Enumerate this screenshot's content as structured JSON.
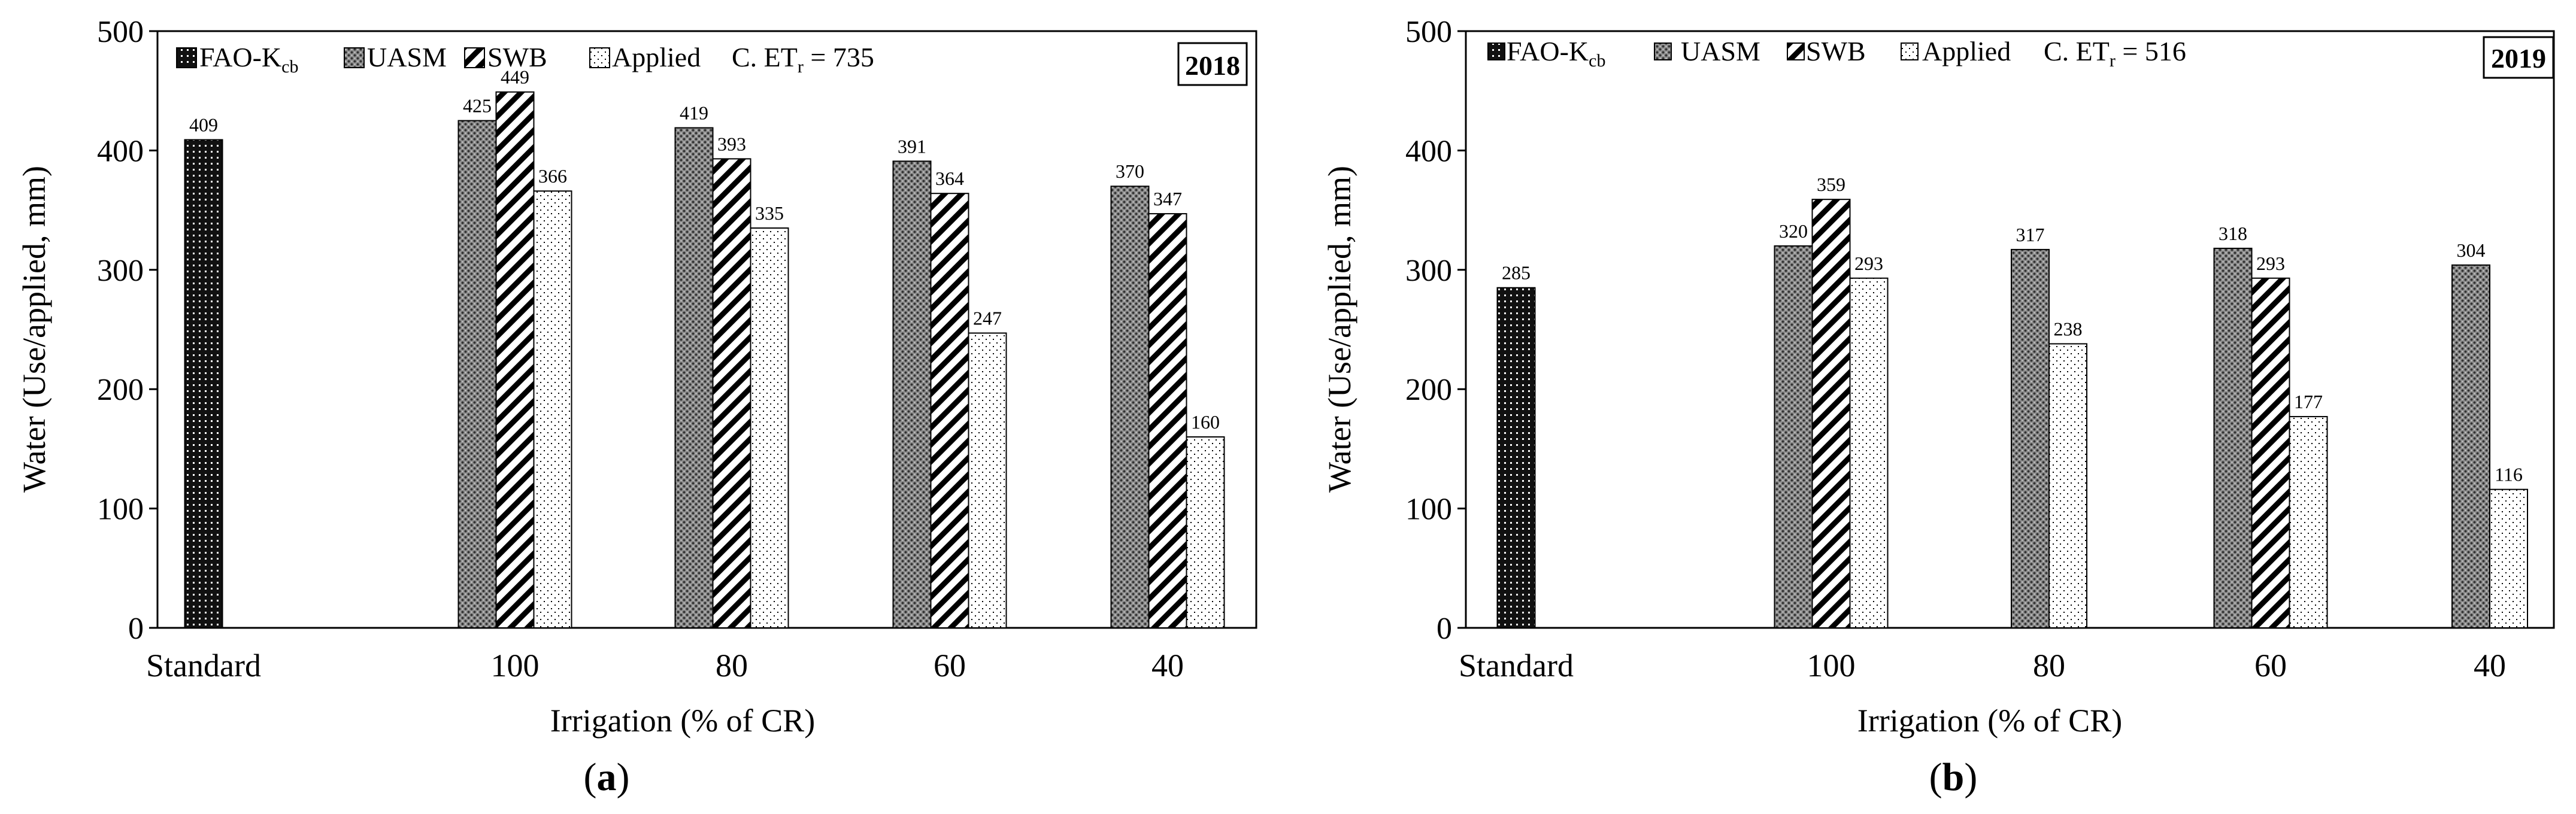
{
  "figure": {
    "legend_labels": [
      "FAO-K",
      "UASM",
      "SWB",
      "Applied"
    ],
    "legend_subscript": "cb",
    "axis_tick_values": [
      0,
      100,
      200,
      300,
      400,
      500
    ]
  },
  "chart_data": [
    {
      "type": "bar",
      "panel_label": "a",
      "year_label": "2018",
      "cet_label": "C. ET",
      "cet_subscript": "r",
      "cet_value_text": " = 735",
      "title": "",
      "xlabel": "Irrigation (% of CR)",
      "ylabel": "Water (Use/applied, mm)",
      "ylim": [
        0,
        500
      ],
      "categories": [
        "Standard",
        "100",
        "80",
        "60",
        "40"
      ],
      "series": [
        {
          "name": "FAO-Kcb",
          "pattern": "pat-fao",
          "values": [
            409,
            null,
            null,
            null,
            null
          ]
        },
        {
          "name": "UASM",
          "pattern": "pat-uasm",
          "values": [
            null,
            425,
            419,
            391,
            370
          ]
        },
        {
          "name": "SWB",
          "pattern": "pat-swb",
          "values": [
            null,
            449,
            393,
            364,
            347
          ]
        },
        {
          "name": "Applied",
          "pattern": "pat-applied",
          "values": [
            null,
            366,
            335,
            247,
            160
          ]
        }
      ],
      "legend_position": "top-left",
      "grid": false
    },
    {
      "type": "bar",
      "panel_label": "b",
      "year_label": "2019",
      "cet_label": "C. ET",
      "cet_subscript": "r",
      "cet_value_text": " = 516",
      "title": "",
      "xlabel": "Irrigation (% of CR)",
      "ylabel": "Water (Use/applied, mm)",
      "ylim": [
        0,
        500
      ],
      "categories": [
        "Standard",
        "100",
        "80",
        "60",
        "40"
      ],
      "series": [
        {
          "name": "FAO-Kcb",
          "pattern": "pat-fao",
          "values": [
            285,
            null,
            null,
            null,
            null
          ]
        },
        {
          "name": "UASM",
          "pattern": "pat-uasm",
          "values": [
            null,
            320,
            317,
            318,
            304
          ]
        },
        {
          "name": "SWB",
          "pattern": "pat-swb",
          "values": [
            null,
            359,
            null,
            293,
            null
          ]
        },
        {
          "name": "Applied",
          "pattern": "pat-applied",
          "values": [
            null,
            293,
            238,
            177,
            116
          ]
        }
      ],
      "legend_position": "top-left",
      "grid": false
    }
  ]
}
